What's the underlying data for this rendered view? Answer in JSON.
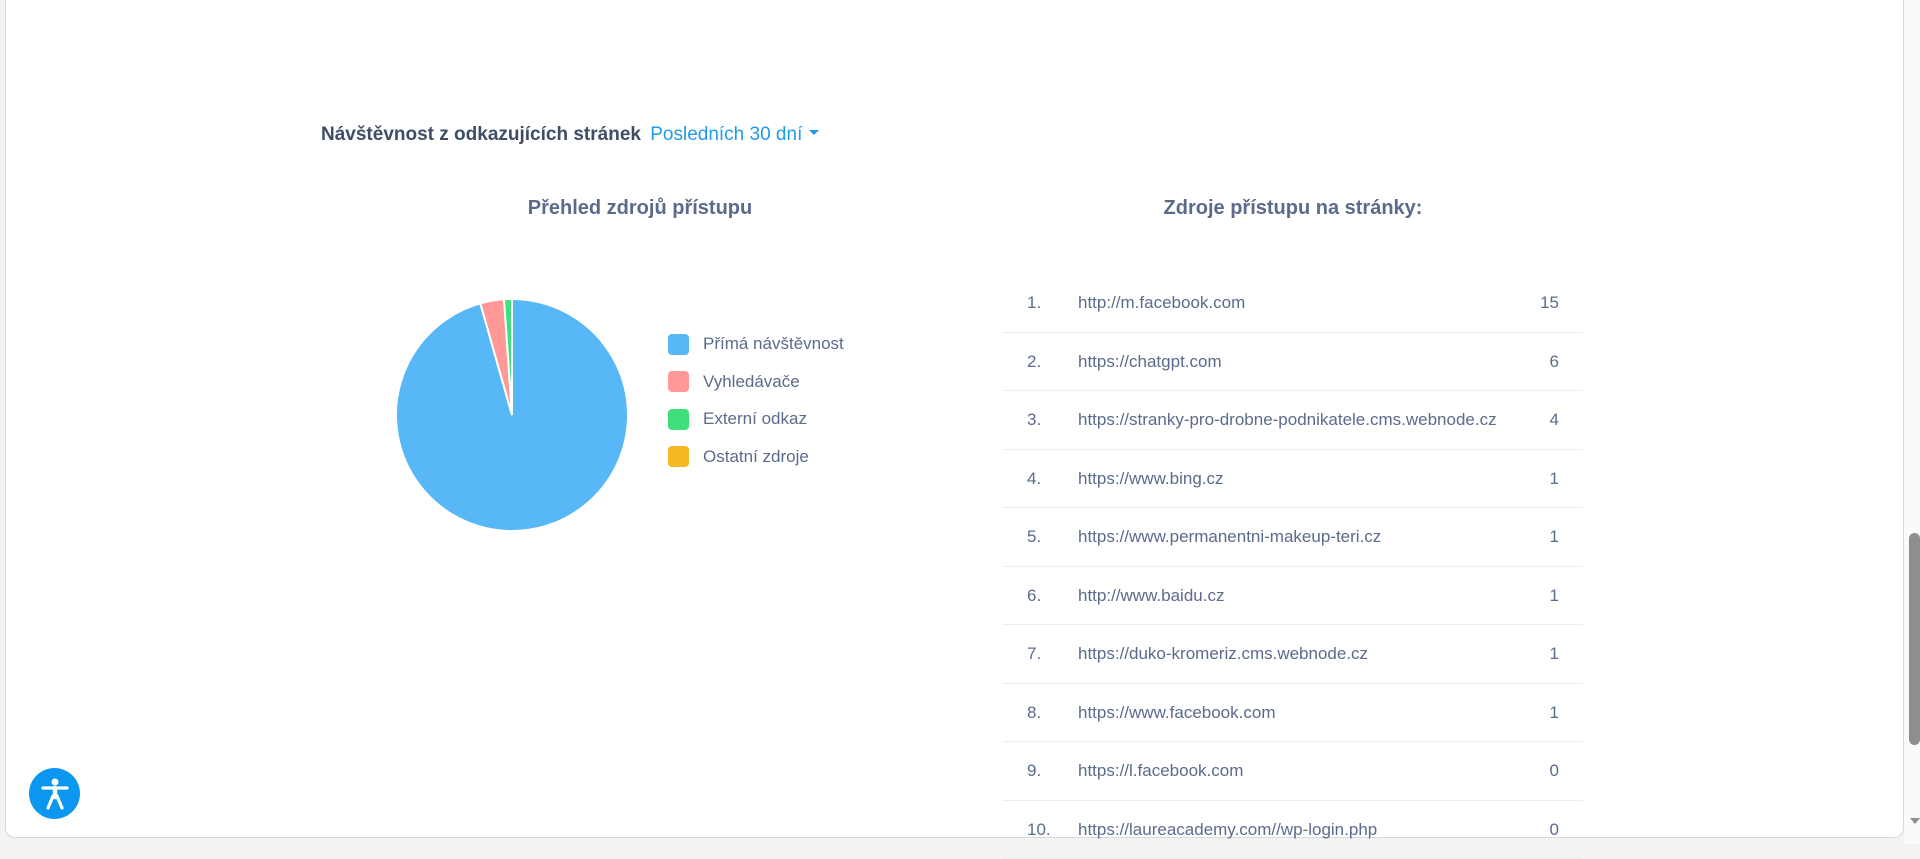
{
  "header": {
    "title": "Návštěvnost z odkazujících stránek",
    "range_label": "Posledních 30 dní"
  },
  "chart_panel": {
    "title": "Přehled zdrojů přístupu"
  },
  "chart_data": {
    "type": "pie",
    "title": "Přehled zdrojů přístupu",
    "categories": [
      "Přímá návštěvnost",
      "Vyhledávače",
      "Externí odkaz",
      "Ostatní zdroje"
    ],
    "values": [
      95.6,
      3.3,
      1.1,
      0
    ],
    "colors": [
      "#58b7f6",
      "#ff9896",
      "#3fe07c",
      "#f5b921"
    ],
    "legend_position": "right"
  },
  "legend": [
    {
      "label": "Přímá návštěvnost",
      "color": "#58b7f6"
    },
    {
      "label": "Vyhledávače",
      "color": "#ff9896"
    },
    {
      "label": "Externí odkaz",
      "color": "#3fe07c"
    },
    {
      "label": "Ostatní zdroje",
      "color": "#f5b921"
    }
  ],
  "sources_panel": {
    "title": "Zdroje přístupu na stránky:",
    "rows": [
      {
        "index": "1.",
        "url": "http://m.facebook.com",
        "count": "15"
      },
      {
        "index": "2.",
        "url": "https://chatgpt.com",
        "count": "6"
      },
      {
        "index": "3.",
        "url": "https://stranky-pro-drobne-podnikatele.cms.webnode.cz",
        "count": "4"
      },
      {
        "index": "4.",
        "url": "https://www.bing.cz",
        "count": "1"
      },
      {
        "index": "5.",
        "url": "https://www.permanentni-makeup-teri.cz",
        "count": "1"
      },
      {
        "index": "6.",
        "url": "http://www.baidu.cz",
        "count": "1"
      },
      {
        "index": "7.",
        "url": "https://duko-kromeriz.cms.webnode.cz",
        "count": "1"
      },
      {
        "index": "8.",
        "url": "https://www.facebook.com",
        "count": "1"
      },
      {
        "index": "9.",
        "url": "https://l.facebook.com",
        "count": "0"
      },
      {
        "index": "10.",
        "url": "https://laureacademy.com//wp-login.php",
        "count": "0"
      }
    ]
  },
  "accessibility": {
    "icon": "accessibility-icon"
  }
}
